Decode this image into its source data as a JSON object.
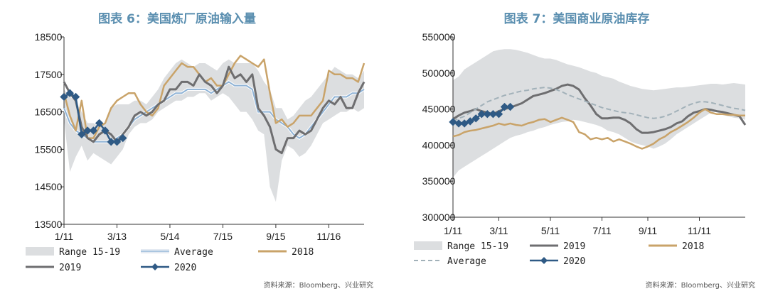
{
  "colors": {
    "range": "#dcdee0",
    "average": "#8fb3d6",
    "s2018": "#c9a369",
    "s2019": "#6e6e70",
    "s2020": "#2f5a85",
    "avg_dashed": "#a2b1b9",
    "title": "#5b8fb0"
  },
  "chart_data": [
    {
      "type": "line",
      "title": "图表 6：美国炼厂原油输入量",
      "source": "资料来源：Bloomberg、兴业研究",
      "ylim": [
        13500,
        18500
      ],
      "yticks": [
        "18500",
        "17500",
        "16500",
        "15500",
        "14500",
        "13500"
      ],
      "ytick_values": [
        18500,
        17500,
        16500,
        15500,
        14500,
        13500
      ],
      "xlim": [
        1,
        52
      ],
      "xticks": [
        "1/11",
        "3/13",
        "5/14",
        "7/15",
        "9/15",
        "11/16"
      ],
      "xtick_weeks": [
        1,
        10,
        19,
        28,
        37,
        46
      ],
      "legend": [
        "Range 15-19",
        "Average",
        "2018",
        "2019",
        "2020"
      ],
      "legend_placement": "bottom",
      "range_band": {
        "name": "Range 15-19",
        "x": [
          1,
          2,
          3,
          4,
          5,
          6,
          7,
          8,
          9,
          10,
          11,
          12,
          13,
          14,
          15,
          16,
          17,
          18,
          19,
          20,
          21,
          22,
          23,
          24,
          25,
          26,
          27,
          28,
          29,
          30,
          31,
          32,
          33,
          34,
          35,
          36,
          37,
          38,
          39,
          40,
          41,
          42,
          43,
          44,
          45,
          46,
          47,
          48,
          49,
          50,
          51,
          52
        ],
        "low": [
          16300,
          14900,
          15300,
          15600,
          15200,
          15400,
          15300,
          15200,
          15100,
          15300,
          15500,
          15900,
          16100,
          16200,
          16200,
          16300,
          16500,
          16600,
          16700,
          16800,
          16800,
          16900,
          16900,
          17000,
          17000,
          16800,
          16900,
          17000,
          16900,
          16700,
          16500,
          16500,
          16300,
          16000,
          15900,
          14500,
          14100,
          15200,
          15600,
          15500,
          15300,
          15400,
          15600,
          15900,
          16200,
          16300,
          16400,
          16500,
          16500,
          16600,
          16500,
          16600
        ],
        "high": [
          17100,
          16900,
          16800,
          16500,
          16200,
          16200,
          16100,
          16200,
          16600,
          16700,
          16700,
          16700,
          16800,
          16800,
          16700,
          16900,
          17100,
          17400,
          17600,
          17800,
          17900,
          17800,
          17700,
          17800,
          17800,
          17700,
          17600,
          17800,
          17900,
          17800,
          17800,
          17800,
          17800,
          17600,
          17300,
          17100,
          16600,
          16600,
          16300,
          16400,
          16600,
          16800,
          16900,
          17100,
          17300,
          17500,
          17700,
          17600,
          17500,
          17500,
          17400,
          17600
        ]
      },
      "series": [
        {
          "name": "Average",
          "x": [
            1,
            2,
            3,
            4,
            5,
            6,
            7,
            8,
            9,
            10,
            11,
            12,
            13,
            14,
            15,
            16,
            17,
            18,
            19,
            20,
            21,
            22,
            23,
            24,
            25,
            26,
            27,
            28,
            29,
            30,
            31,
            32,
            33,
            34,
            35,
            36,
            37,
            38,
            39,
            40,
            41,
            42,
            43,
            44,
            45,
            46,
            47,
            48,
            49,
            50,
            51,
            52
          ],
          "y": [
            16600,
            16200,
            16000,
            15900,
            15800,
            15700,
            15700,
            15700,
            15700,
            15800,
            15900,
            16100,
            16300,
            16400,
            16500,
            16600,
            16700,
            16800,
            16900,
            17000,
            17000,
            17100,
            17100,
            17100,
            17100,
            17000,
            17100,
            17200,
            17300,
            17200,
            17200,
            17200,
            17100,
            16500,
            16500,
            16500,
            16300,
            16200,
            16100,
            15900,
            15800,
            15900,
            16100,
            16300,
            16500,
            16700,
            16900,
            16900,
            16900,
            17000,
            17000,
            17100
          ]
        },
        {
          "name": "2018",
          "x": [
            1,
            2,
            3,
            4,
            5,
            6,
            7,
            8,
            9,
            10,
            11,
            12,
            13,
            14,
            15,
            16,
            17,
            18,
            19,
            20,
            21,
            22,
            23,
            24,
            25,
            26,
            27,
            28,
            29,
            30,
            31,
            32,
            33,
            34,
            35,
            36,
            37,
            38,
            39,
            40,
            41,
            42,
            43,
            44,
            45,
            46,
            47,
            48,
            49,
            50,
            51,
            52
          ],
          "y": [
            17000,
            16400,
            16000,
            16800,
            15800,
            15800,
            16100,
            16200,
            16600,
            16800,
            16900,
            17000,
            17000,
            16700,
            16500,
            16400,
            16600,
            17200,
            17400,
            17600,
            17800,
            17700,
            17700,
            17500,
            17300,
            17400,
            17200,
            17200,
            17500,
            17800,
            18000,
            17900,
            17800,
            17700,
            17900,
            17000,
            16200,
            16300,
            16100,
            16200,
            16400,
            16400,
            16400,
            16600,
            16800,
            17600,
            17500,
            17500,
            17400,
            17400,
            17300,
            17800
          ]
        },
        {
          "name": "2019",
          "x": [
            1,
            2,
            3,
            4,
            5,
            6,
            7,
            8,
            9,
            10,
            11,
            12,
            13,
            14,
            15,
            16,
            17,
            18,
            19,
            20,
            21,
            22,
            23,
            24,
            25,
            26,
            27,
            28,
            29,
            30,
            31,
            32,
            33,
            34,
            35,
            36,
            37,
            38,
            39,
            40,
            41,
            42,
            43,
            44,
            45,
            46,
            47,
            48,
            49,
            50,
            51,
            52
          ],
          "y": [
            17300,
            17000,
            16800,
            16100,
            15800,
            15700,
            15900,
            16000,
            15900,
            15700,
            15900,
            16100,
            16400,
            16500,
            16400,
            16500,
            16700,
            16800,
            17100,
            17100,
            17300,
            17300,
            17200,
            17500,
            17300,
            17200,
            17000,
            17200,
            17700,
            17400,
            17500,
            17300,
            17500,
            16600,
            16400,
            16100,
            15500,
            15400,
            15800,
            15800,
            16000,
            15900,
            16000,
            16300,
            16600,
            16800,
            16700,
            16900,
            16600,
            16600,
            17000,
            17300
          ]
        },
        {
          "name": "2020",
          "x": [
            1,
            2,
            3,
            4,
            5,
            6,
            7,
            8,
            9,
            10,
            11
          ],
          "y": [
            16900,
            17000,
            16900,
            15900,
            16000,
            16000,
            16200,
            16000,
            15700,
            15700,
            15800
          ]
        }
      ]
    },
    {
      "type": "line",
      "title": "图表 7：美国商业原油库存",
      "source": "资料来源：Bloomberg、兴业研究",
      "ylim": [
        300000,
        550000
      ],
      "yticks": [
        "550000",
        "500000",
        "450000",
        "400000",
        "350000",
        "300000"
      ],
      "ytick_values": [
        550000,
        500000,
        450000,
        400000,
        350000,
        300000
      ],
      "xlim": [
        1,
        52
      ],
      "xticks": [
        "1/11",
        "3/11",
        "5/11",
        "7/11",
        "9/11",
        "11/11"
      ],
      "xtick_weeks": [
        1,
        9,
        18,
        27,
        35,
        44
      ],
      "legend": [
        "Range 15-19",
        "2019",
        "2018",
        "Average",
        "2020"
      ],
      "legend_placement": "bottom",
      "range_band": {
        "name": "Range 15-19",
        "x": [
          1,
          2,
          3,
          4,
          5,
          6,
          7,
          8,
          9,
          10,
          11,
          12,
          13,
          14,
          15,
          16,
          17,
          18,
          19,
          20,
          21,
          22,
          23,
          24,
          25,
          26,
          27,
          28,
          29,
          30,
          31,
          32,
          33,
          34,
          35,
          36,
          37,
          38,
          39,
          40,
          41,
          42,
          43,
          44,
          45,
          46,
          47,
          48,
          49,
          50,
          51,
          52
        ],
        "low": [
          355000,
          365000,
          370000,
          375000,
          380000,
          385000,
          390000,
          395000,
          400000,
          405000,
          410000,
          413000,
          415000,
          418000,
          420000,
          423000,
          425000,
          428000,
          430000,
          432000,
          433000,
          435000,
          434000,
          432000,
          430000,
          428000,
          425000,
          420000,
          418000,
          415000,
          410000,
          405000,
          402000,
          400000,
          398000,
          395000,
          398000,
          402000,
          408000,
          415000,
          420000,
          425000,
          430000,
          435000,
          440000,
          445000,
          446000,
          442000,
          440000,
          438000,
          437000,
          435000
        ],
        "high": [
          490000,
          495000,
          505000,
          510000,
          515000,
          520000,
          525000,
          530000,
          532000,
          533000,
          533000,
          532000,
          530000,
          528000,
          525000,
          522000,
          520000,
          520000,
          518000,
          515000,
          512000,
          510000,
          508000,
          505000,
          502000,
          500000,
          496000,
          494000,
          492000,
          488000,
          485000,
          482000,
          480000,
          478000,
          477000,
          476000,
          477000,
          478000,
          479000,
          480000,
          480000,
          481000,
          482000,
          483000,
          484000,
          485000,
          485000,
          484000,
          485000,
          486000,
          485000,
          484000
        ]
      },
      "series": [
        {
          "name": "2019",
          "x": [
            1,
            2,
            3,
            4,
            5,
            6,
            7,
            8,
            9,
            10,
            11,
            12,
            13,
            14,
            15,
            16,
            17,
            18,
            19,
            20,
            21,
            22,
            23,
            24,
            25,
            26,
            27,
            28,
            29,
            30,
            31,
            32,
            33,
            34,
            35,
            36,
            37,
            38,
            39,
            40,
            41,
            42,
            43,
            44,
            45,
            46,
            47,
            48,
            49,
            50,
            51,
            52
          ],
          "y": [
            436000,
            441000,
            445000,
            447000,
            450000,
            447000,
            445000,
            443000,
            447000,
            450000,
            452000,
            455000,
            458000,
            463000,
            468000,
            470000,
            472000,
            475000,
            478000,
            482000,
            484000,
            482000,
            477000,
            465000,
            455000,
            443000,
            437000,
            437000,
            438000,
            438000,
            435000,
            430000,
            422000,
            417000,
            417000,
            418000,
            420000,
            422000,
            425000,
            430000,
            433000,
            440000,
            445000,
            447000,
            450000,
            449000,
            447000,
            446000,
            444000,
            442000,
            440000,
            428000
          ]
        },
        {
          "name": "2018",
          "x": [
            1,
            2,
            3,
            4,
            5,
            6,
            7,
            8,
            9,
            10,
            11,
            12,
            13,
            14,
            15,
            16,
            17,
            18,
            19,
            20,
            21,
            22,
            23,
            24,
            25,
            26,
            27,
            28,
            29,
            30,
            31,
            32,
            33,
            34,
            35,
            36,
            37,
            38,
            39,
            40,
            41,
            42,
            43,
            44,
            45,
            46,
            47,
            48,
            49,
            50,
            51,
            52
          ],
          "y": [
            412000,
            414000,
            418000,
            420000,
            421000,
            423000,
            425000,
            427000,
            430000,
            428000,
            430000,
            428000,
            427000,
            430000,
            432000,
            435000,
            436000,
            432000,
            435000,
            438000,
            435000,
            432000,
            418000,
            415000,
            408000,
            410000,
            408000,
            410000,
            405000,
            408000,
            405000,
            402000,
            398000,
            395000,
            398000,
            402000,
            408000,
            412000,
            418000,
            422000,
            427000,
            432000,
            438000,
            445000,
            450000,
            445000,
            443000,
            443000,
            442000,
            442000,
            441000,
            441000
          ]
        },
        {
          "name": "Average",
          "x": [
            1,
            2,
            3,
            4,
            5,
            6,
            7,
            8,
            9,
            10,
            11,
            12,
            13,
            14,
            15,
            16,
            17,
            18,
            19,
            20,
            21,
            22,
            23,
            24,
            25,
            26,
            27,
            28,
            29,
            30,
            31,
            32,
            33,
            34,
            35,
            36,
            37,
            38,
            39,
            40,
            41,
            42,
            43,
            44,
            45,
            46,
            47,
            48,
            49,
            50,
            51,
            52
          ],
          "y": [
            433000,
            437000,
            440000,
            445000,
            450000,
            455000,
            460000,
            463000,
            466000,
            469000,
            471000,
            473000,
            475000,
            476000,
            478000,
            479000,
            480000,
            479000,
            477000,
            474000,
            470000,
            467000,
            464000,
            461000,
            458000,
            455000,
            452000,
            450000,
            448000,
            446000,
            445000,
            444000,
            442000,
            440000,
            438000,
            437000,
            438000,
            440000,
            443000,
            447000,
            451000,
            455000,
            458000,
            460000,
            460000,
            459000,
            457000,
            455000,
            453000,
            451000,
            450000,
            448000
          ]
        },
        {
          "name": "2020",
          "x": [
            1,
            2,
            3,
            4,
            5,
            6,
            7,
            8,
            9,
            10,
            11
          ],
          "y": [
            432000,
            430000,
            430000,
            433000,
            437000,
            443000,
            443000,
            443000,
            443000,
            453000,
            453000
          ]
        }
      ]
    }
  ]
}
